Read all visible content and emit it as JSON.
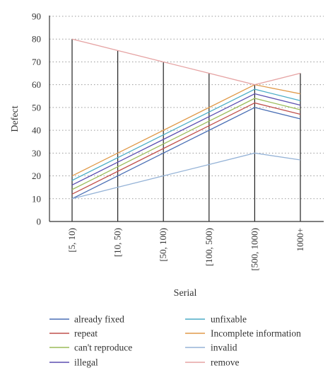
{
  "chart_data": {
    "type": "line",
    "xlabel": "Serial",
    "ylabel": "Defect",
    "ylim": [
      0,
      90
    ],
    "yticks": [
      "0",
      "10",
      "20",
      "30",
      "40",
      "50",
      "60",
      "70",
      "80",
      "90"
    ],
    "categories": [
      "[5, 10)",
      "[10, 50)",
      "[50, 100)",
      "[100, 500)",
      "[500, 1000)",
      "1000+"
    ],
    "grid": "horizontal dotted",
    "legend_position": "bottom",
    "series": [
      {
        "name": "already fixed",
        "color": "#4a6fb5",
        "values": [
          10,
          20,
          30,
          40,
          50,
          45
        ]
      },
      {
        "name": "repeat",
        "color": "#c0504d",
        "values": [
          12,
          22,
          32,
          42,
          52,
          47
        ]
      },
      {
        "name": "can't reproduce",
        "color": "#9bbb59",
        "values": [
          14,
          24,
          34,
          44,
          54,
          49
        ]
      },
      {
        "name": "illegal",
        "color": "#5b4fb0",
        "values": [
          16,
          26,
          36,
          46,
          56,
          51
        ]
      },
      {
        "name": "unfixable",
        "color": "#4bacc6",
        "values": [
          18,
          28,
          38,
          48,
          58,
          53
        ]
      },
      {
        "name": "Incomplete information",
        "color": "#e09a4a",
        "values": [
          20,
          30,
          40,
          50,
          60,
          56
        ]
      },
      {
        "name": "invalid",
        "color": "#95b3d7",
        "values": [
          10,
          15,
          20,
          25,
          30,
          27
        ]
      },
      {
        "name": "remove",
        "color": "#e6a3a3",
        "values": [
          80,
          75,
          70,
          65,
          60,
          65
        ]
      }
    ]
  }
}
